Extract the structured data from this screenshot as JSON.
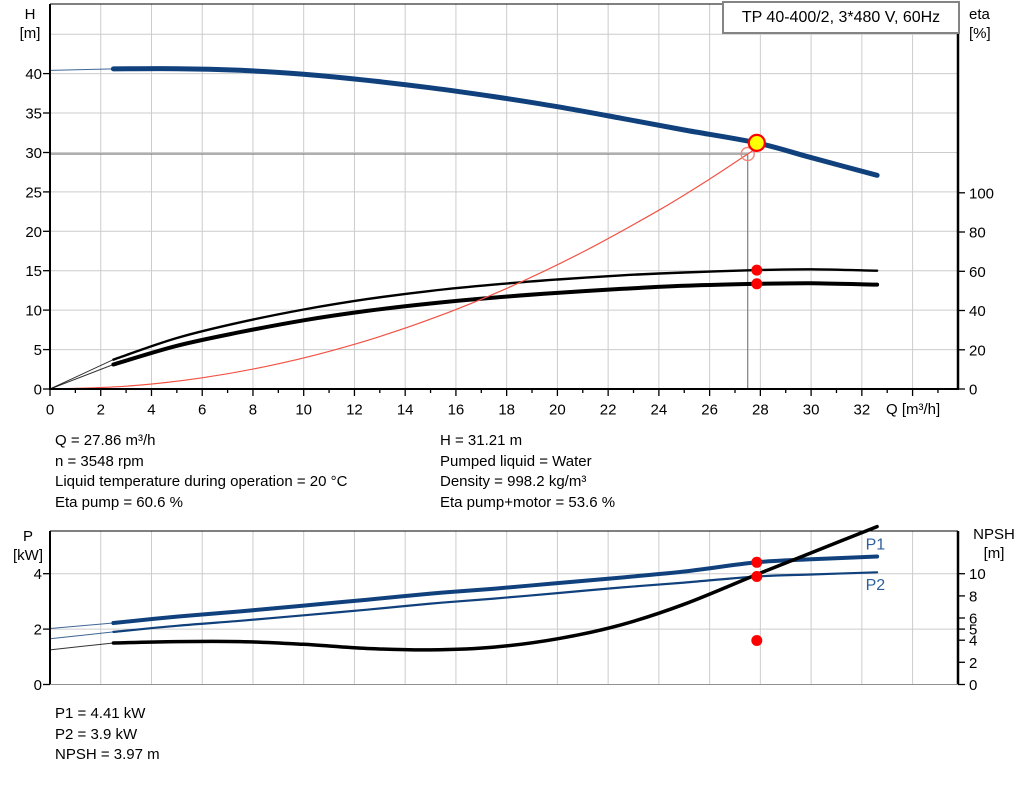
{
  "title_box": "TP 40-400/2, 3*480 V, 60Hz",
  "colors": {
    "curve_blue": "#10417d",
    "label_blue": "#2d5f9e",
    "marker_red": "#ff0000",
    "operating_yellow": "#ffff00",
    "system_red": "#f25244",
    "duty_circle_red": "#f4857a",
    "duty_line_gray": "#7f7f7f",
    "grid_gray": "#cccccc",
    "axis_black": "#000000",
    "axis_gray": "#909090"
  },
  "info_top": {
    "left": [
      "Q = 27.86 m³/h",
      "n = 3548 rpm",
      "Liquid temperature during operation = 20 °C",
      "Eta pump = 60.6 %"
    ],
    "right": [
      "H = 31.21 m",
      "Pumped liquid = Water",
      "Density = 998.2 kg/m³",
      "Eta pump+motor = 53.6 %"
    ]
  },
  "info_bottom": [
    "P1 = 4.41 kW",
    "P2 = 3.9 kW",
    "NPSH = 3.97 m"
  ],
  "chart_data": [
    {
      "type": "line",
      "title": "TP 40-400/2, 3*480 V, 60Hz",
      "xlabel": "Q [m³/h]",
      "ylabel_left": "H [m]",
      "ylabel_left_lines": [
        "H",
        "[m]"
      ],
      "ylabel_right": "eta [%]",
      "ylabel_right_lines": [
        "eta",
        "[%]"
      ],
      "xlim": [
        0,
        35.8
      ],
      "ylim_left": [
        0,
        48.8
      ],
      "ylim_right": [
        0,
        196
      ],
      "grid": true,
      "x_ticks": [
        0,
        2,
        4,
        6,
        8,
        10,
        12,
        14,
        16,
        18,
        20,
        22,
        24,
        26,
        28,
        30,
        32
      ],
      "y_left_ticks": [
        0,
        5,
        10,
        15,
        20,
        25,
        30,
        35,
        40
      ],
      "y_right_ticks": [
        0,
        20,
        40,
        60,
        80,
        100
      ],
      "grid_left_values": [
        5,
        10,
        15,
        20,
        25,
        30,
        35,
        40,
        45
      ],
      "series": [
        {
          "name": "pump-curve-h",
          "axis": "left",
          "color": "#10417d",
          "width": 5,
          "lead": 2.5,
          "points": [
            [
              0,
              40.4
            ],
            [
              2.5,
              40.6
            ],
            [
              5,
              40.62
            ],
            [
              7.5,
              40.42
            ],
            [
              10,
              39.92
            ],
            [
              12.5,
              39.15
            ],
            [
              15,
              38.2
            ],
            [
              17.5,
              37.08
            ],
            [
              20,
              35.8
            ],
            [
              22.5,
              34.35
            ],
            [
              25,
              32.85
            ],
            [
              27.86,
              31.21
            ],
            [
              30,
              29.35
            ],
            [
              32.6,
              27.1
            ]
          ]
        },
        {
          "name": "eta-pump-curve",
          "axis": "right",
          "color": "#000000",
          "width": 2.4,
          "lead": 2.5,
          "points": [
            [
              0,
              0
            ],
            [
              2.5,
              15
            ],
            [
              5,
              26
            ],
            [
              7.5,
              34
            ],
            [
              10,
              40.5
            ],
            [
              12.5,
              45.8
            ],
            [
              15,
              50
            ],
            [
              17.5,
              53.2
            ],
            [
              20,
              55.8
            ],
            [
              22.5,
              57.9
            ],
            [
              25,
              59.4
            ],
            [
              27.86,
              60.6
            ],
            [
              30,
              61
            ],
            [
              32.6,
              60.3
            ]
          ]
        },
        {
          "name": "eta-pump-motor-curve",
          "axis": "right",
          "color": "#000000",
          "width": 4,
          "lead": 2.5,
          "points": [
            [
              0,
              0
            ],
            [
              2.5,
              12.5
            ],
            [
              5,
              22
            ],
            [
              7.5,
              29
            ],
            [
              10,
              35
            ],
            [
              12.5,
              39.8
            ],
            [
              15,
              43.6
            ],
            [
              17.5,
              46.6
            ],
            [
              20,
              49
            ],
            [
              22.5,
              51
            ],
            [
              25,
              52.6
            ],
            [
              27.86,
              53.6
            ],
            [
              30,
              53.9
            ],
            [
              32.6,
              53.2
            ]
          ]
        },
        {
          "name": "system-curve",
          "axis": "left",
          "color": "#f25244",
          "width": 1.2,
          "lead": 0,
          "points": [
            [
              0,
              0
            ],
            [
              3,
              0.35
            ],
            [
              6,
              1.42
            ],
            [
              9,
              3.19
            ],
            [
              12,
              5.67
            ],
            [
              15,
              8.86
            ],
            [
              18,
              12.76
            ],
            [
              21,
              17.37
            ],
            [
              24,
              22.68
            ],
            [
              26,
              26.62
            ],
            [
              27.5,
              29.8
            ],
            [
              28.2,
              31.3
            ]
          ]
        }
      ],
      "duty_lines": {
        "q": 27.5,
        "h": 29.8
      },
      "markers": [
        {
          "name": "duty-point-circle",
          "x": 27.5,
          "y": 29.8,
          "axis": "left",
          "r": 6.5,
          "fill": "none",
          "stroke": "#f4857a",
          "sw": 1.4
        },
        {
          "name": "eta-pump-point",
          "x": 27.86,
          "y": 60.6,
          "axis": "right",
          "r": 5.5,
          "fill": "#ff0000",
          "stroke": "none",
          "sw": 0
        },
        {
          "name": "eta-pump-motor-point",
          "x": 27.86,
          "y": 53.6,
          "axis": "right",
          "r": 5.5,
          "fill": "#ff0000",
          "stroke": "none",
          "sw": 0
        },
        {
          "name": "operating-point",
          "x": 27.86,
          "y": 31.21,
          "axis": "left",
          "r": 8,
          "fill": "#ffff00",
          "stroke": "#ff0000",
          "sw": 2.2
        }
      ],
      "annotations": []
    },
    {
      "type": "line",
      "title": "",
      "xlabel": "",
      "ylabel_left": "P [kW]",
      "ylabel_left_lines": [
        "P",
        "[kW]"
      ],
      "ylabel_right": "NPSH [m]",
      "ylabel_right_lines": [
        "NPSH",
        "[m]"
      ],
      "xlim": [
        0,
        35.8
      ],
      "ylim_left": [
        0,
        5.54
      ],
      "ylim_right": [
        0,
        13.85
      ],
      "grid": true,
      "x_ticks": [],
      "y_left_ticks": [
        0,
        2,
        4
      ],
      "y_right_ticks": [
        0,
        2,
        4,
        5,
        6,
        8,
        10
      ],
      "grid_left_values": [
        2,
        4
      ],
      "series": [
        {
          "name": "p1-curve",
          "axis": "left",
          "color": "#10417d",
          "width": 4,
          "lead": 2.5,
          "points": [
            [
              0,
              2.02
            ],
            [
              2.5,
              2.22
            ],
            [
              5,
              2.45
            ],
            [
              7.5,
              2.64
            ],
            [
              10,
              2.85
            ],
            [
              12.5,
              3.06
            ],
            [
              15,
              3.28
            ],
            [
              17.5,
              3.46
            ],
            [
              20,
              3.66
            ],
            [
              22.5,
              3.86
            ],
            [
              25,
              4.08
            ],
            [
              27.86,
              4.41
            ],
            [
              30,
              4.52
            ],
            [
              32.6,
              4.62
            ]
          ]
        },
        {
          "name": "p2-curve",
          "axis": "left",
          "color": "#10417d",
          "width": 2.2,
          "lead": 2.5,
          "points": [
            [
              0,
              1.65
            ],
            [
              2.5,
              1.9
            ],
            [
              5,
              2.12
            ],
            [
              7.5,
              2.3
            ],
            [
              10,
              2.5
            ],
            [
              12.5,
              2.7
            ],
            [
              15,
              2.92
            ],
            [
              17.5,
              3.1
            ],
            [
              20,
              3.3
            ],
            [
              22.5,
              3.5
            ],
            [
              25,
              3.68
            ],
            [
              27.86,
              3.9
            ],
            [
              30,
              3.97
            ],
            [
              32.6,
              4.05
            ]
          ]
        },
        {
          "name": "npsh-curve",
          "axis": "left",
          "color": "#000000",
          "width": 3.5,
          "lead": 2.5,
          "points": [
            [
              0,
              1.25
            ],
            [
              2.5,
              1.5
            ],
            [
              5,
              1.55
            ],
            [
              7.5,
              1.55
            ],
            [
              10,
              1.45
            ],
            [
              12.5,
              1.3
            ],
            [
              15,
              1.25
            ],
            [
              17.5,
              1.35
            ],
            [
              20,
              1.65
            ],
            [
              22.5,
              2.15
            ],
            [
              25,
              2.9
            ],
            [
              27.86,
              3.97
            ],
            [
              30,
              4.75
            ],
            [
              32.6,
              5.7
            ]
          ]
        }
      ],
      "duty_lines": null,
      "markers": [
        {
          "name": "p1-point",
          "x": 27.86,
          "y": 4.41,
          "axis": "left",
          "r": 5.5,
          "fill": "#ff0000",
          "stroke": "none",
          "sw": 0
        },
        {
          "name": "p2-point",
          "x": 27.86,
          "y": 3.9,
          "axis": "left",
          "r": 5.5,
          "fill": "#ff0000",
          "stroke": "none",
          "sw": 0
        },
        {
          "name": "npsh-point",
          "x": 27.86,
          "y": 3.97,
          "axis": "right",
          "r": 5.5,
          "fill": "#ff0000",
          "stroke": "none",
          "sw": 0
        }
      ],
      "annotations": [
        {
          "name": "p1-curve-label",
          "text": "P1",
          "x": 32.15,
          "y": 5.05,
          "axis": "left",
          "color": "#2d5f9e"
        },
        {
          "name": "p2-curve-label",
          "text": "P2",
          "x": 32.15,
          "y": 3.6,
          "axis": "left",
          "color": "#2d5f9e"
        }
      ]
    }
  ]
}
